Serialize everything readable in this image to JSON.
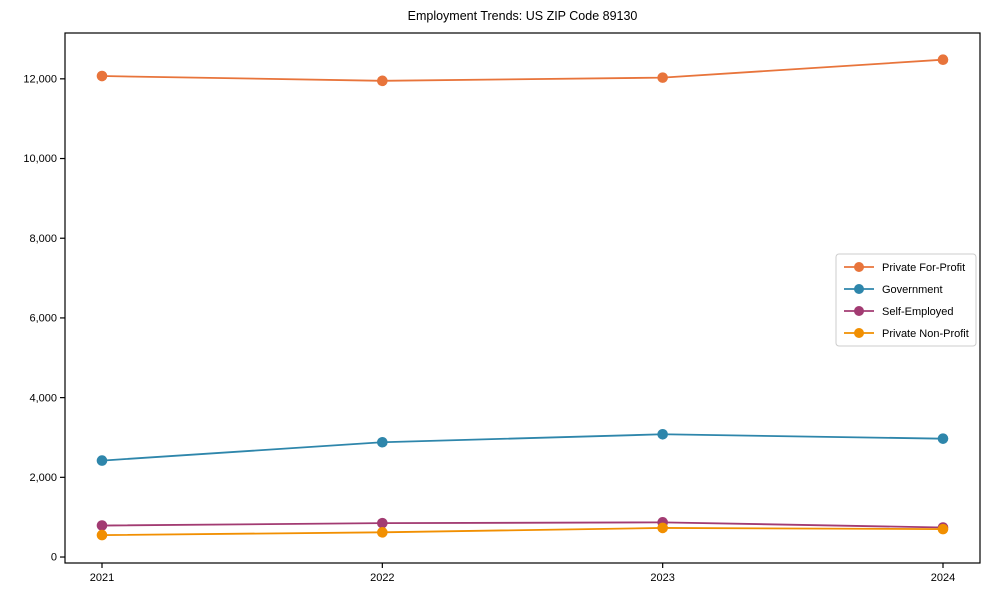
{
  "figure": {
    "background": "#ffffff",
    "text_color": "#000000",
    "spine_color": "#000000",
    "legend_border_color": "#cccccc"
  },
  "chart_data": {
    "type": "line",
    "title": "Employment Trends: US ZIP Code 89130",
    "xlabel": "",
    "ylabel": "",
    "x": [
      2021,
      2022,
      2023,
      2024
    ],
    "x_tick_labels": [
      "2021",
      "2022",
      "2023",
      "2024"
    ],
    "series": [
      {
        "name": "Private For-Profit",
        "color": "#E8743B",
        "values": [
          12070,
          11950,
          12030,
          12480
        ]
      },
      {
        "name": "Government",
        "color": "#2E86AB",
        "values": [
          2420,
          2880,
          3080,
          2970
        ]
      },
      {
        "name": "Self-Employed",
        "color": "#A23B72",
        "values": [
          790,
          850,
          870,
          740
        ]
      },
      {
        "name": "Private Non-Profit",
        "color": "#F18F01",
        "values": [
          550,
          620,
          730,
          700
        ]
      }
    ],
    "ylim": [
      -150,
      13150
    ],
    "yticks": [
      0,
      2000,
      4000,
      6000,
      8000,
      10000,
      12000
    ],
    "ytick_labels": [
      "0",
      "2,000",
      "4,000",
      "6,000",
      "8,000",
      "10,000",
      "12,000"
    ],
    "grid": false,
    "marker": "circle",
    "legend": {
      "position": "center-right",
      "entries": [
        "Private For-Profit",
        "Government",
        "Self-Employed",
        "Private Non-Profit"
      ]
    }
  }
}
